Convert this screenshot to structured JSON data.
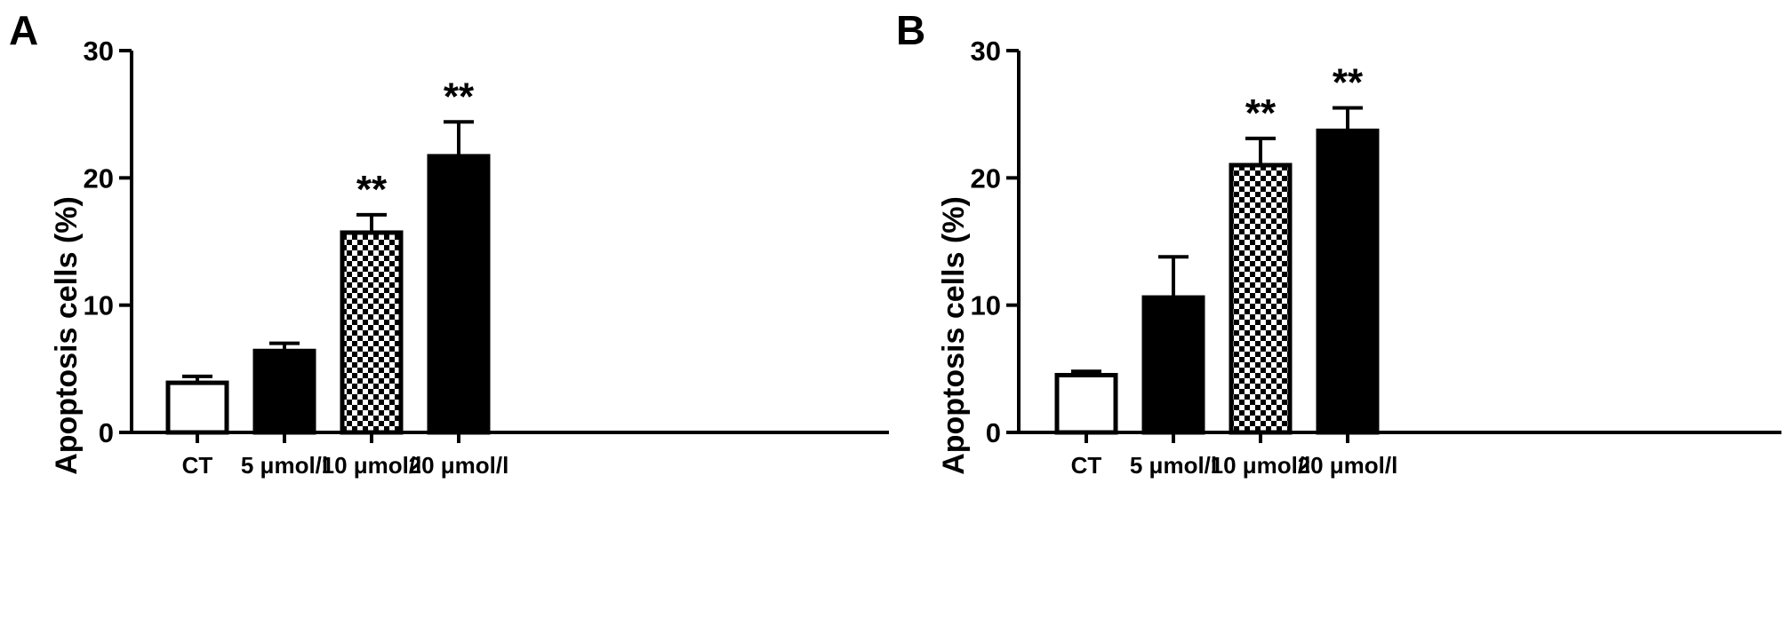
{
  "chart_data": [
    {
      "type": "bar",
      "panel_label": "A",
      "ylabel": "Apoptosis cells (%)",
      "xlabel": "",
      "ylim": [
        0,
        30
      ],
      "yticks": [
        "0",
        "10",
        "20",
        "30"
      ],
      "categories": [
        "CT",
        "5 μmol/l",
        "10 μmol/l",
        "20 μmol/l"
      ],
      "values": [
        3.9,
        6.4,
        15.7,
        21.7
      ],
      "errors": [
        0.5,
        0.6,
        1.4,
        2.7
      ],
      "fills": [
        "white",
        "black",
        "checker",
        "black"
      ],
      "significance": [
        "",
        "",
        "**",
        "**"
      ]
    },
    {
      "type": "bar",
      "panel_label": "B",
      "ylabel": "Apoptosis cells (%)",
      "xlabel": "",
      "ylim": [
        0,
        30
      ],
      "yticks": [
        "0",
        "10",
        "20",
        "30"
      ],
      "categories": [
        "CT",
        "5 μmol/l",
        "10 μmol/l",
        "20 μmol/l"
      ],
      "values": [
        4.5,
        10.6,
        21.0,
        23.7
      ],
      "errors": [
        0.3,
        3.2,
        2.1,
        1.8
      ],
      "fills": [
        "white",
        "black",
        "checker",
        "black"
      ],
      "significance": [
        "",
        "",
        "**",
        "**"
      ]
    }
  ]
}
